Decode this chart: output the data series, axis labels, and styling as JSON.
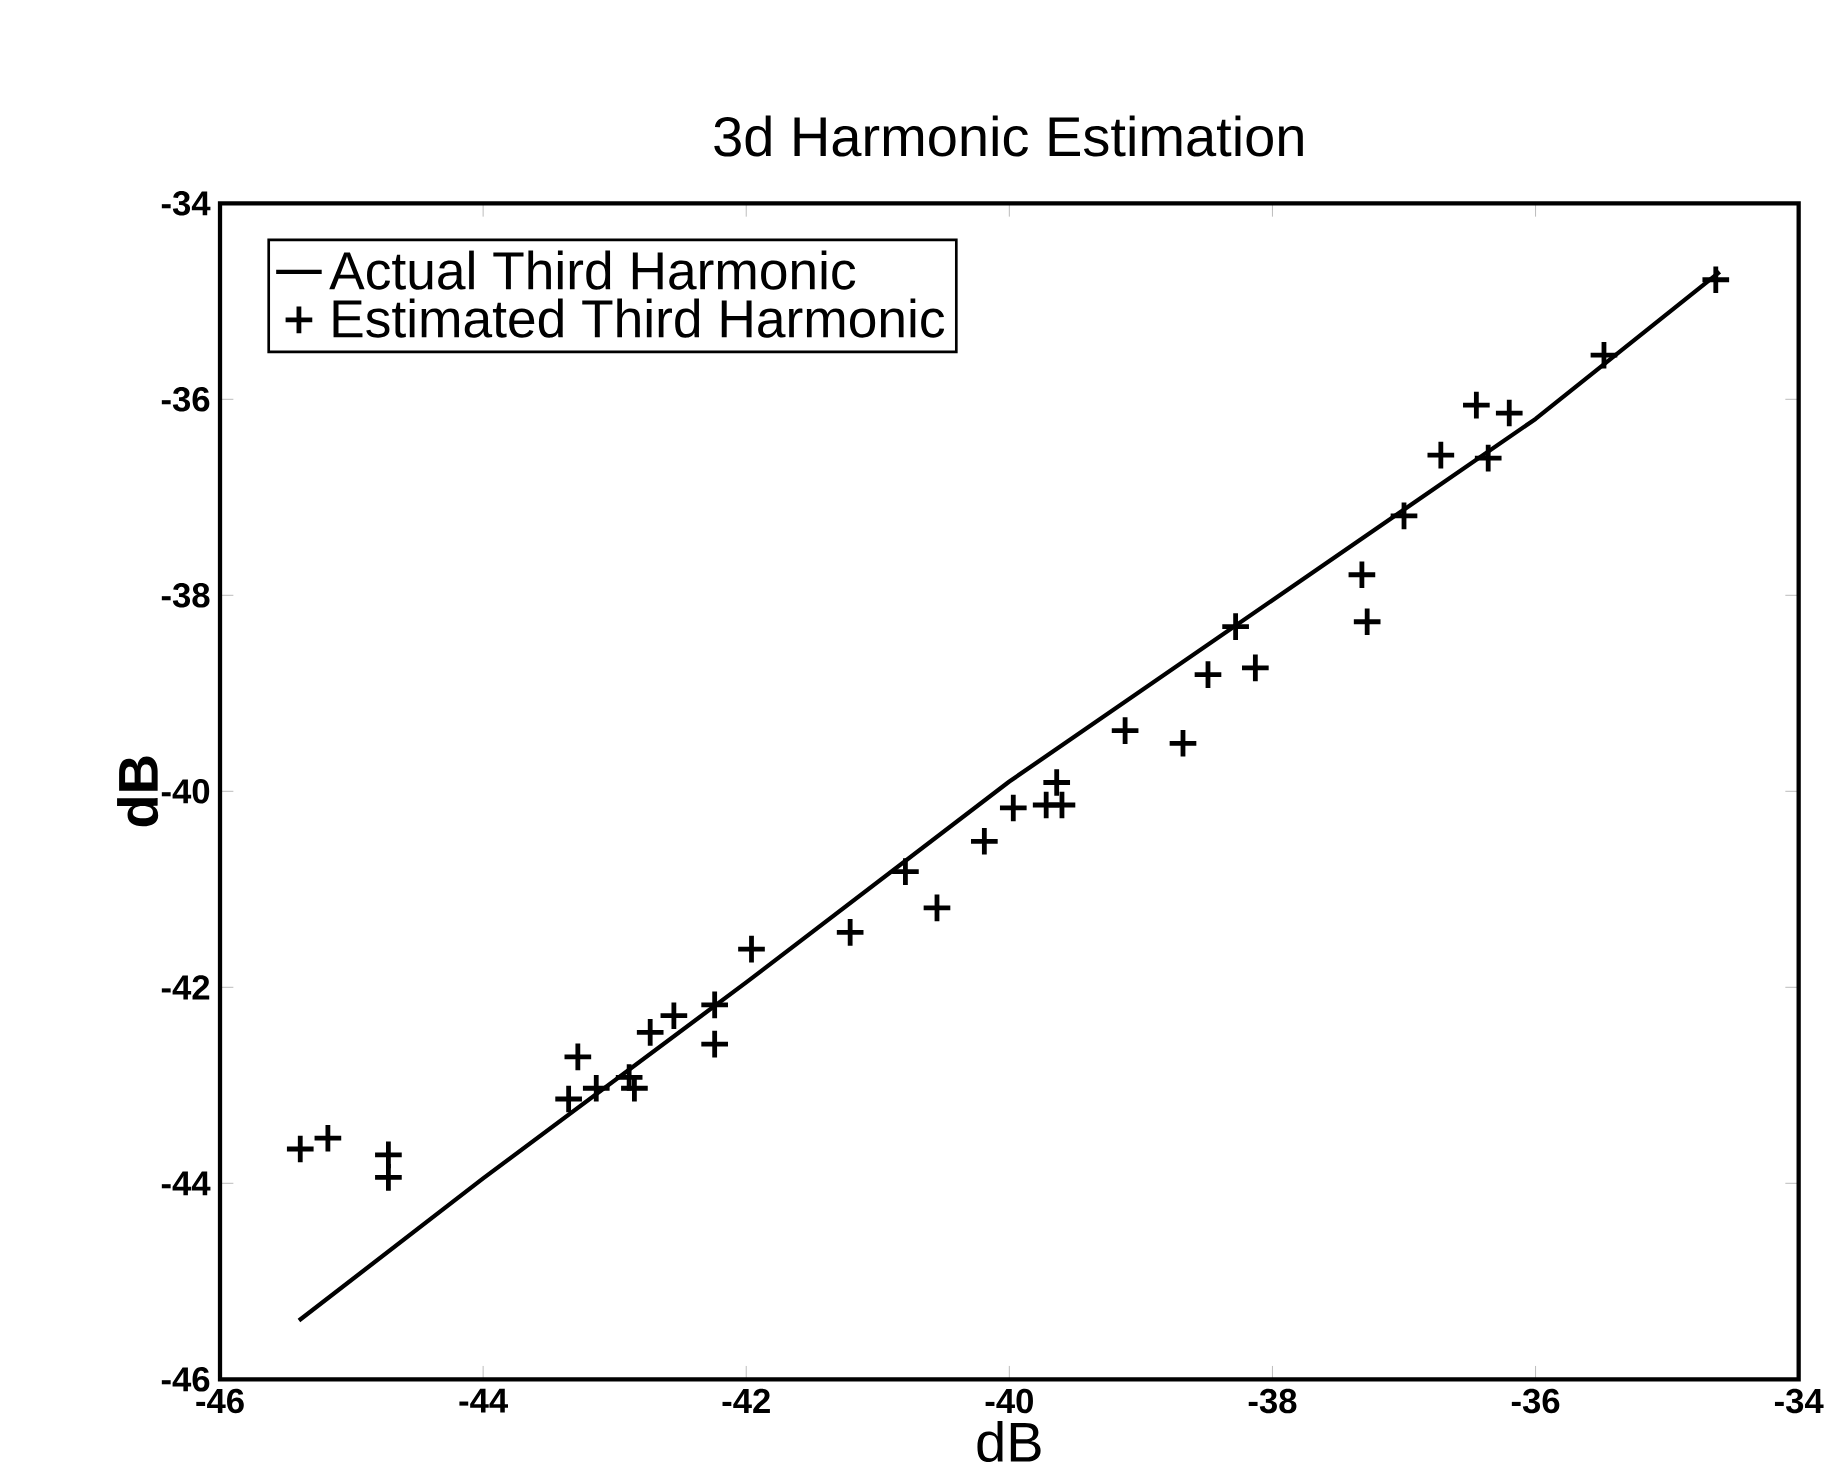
{
  "chart_data": {
    "type": "scatter",
    "title": "3d Harmonic Estimation",
    "xlabel": "dB",
    "ylabel": "dB",
    "xlim": [
      -46,
      -34
    ],
    "ylim": [
      -46,
      -34
    ],
    "xticks": [
      -46,
      -44,
      -42,
      -40,
      -38,
      -36,
      -34
    ],
    "yticks": [
      -46,
      -44,
      -42,
      -40,
      -38,
      -36,
      -34
    ],
    "grid": false,
    "legend": "top left",
    "series": [
      {
        "name": "Actual Third Harmonic",
        "type": "line",
        "color": "#000000",
        "line_style": "solid",
        "marker": "none",
        "x": [
          -45.4,
          -44,
          -42,
          -40,
          -38,
          -36,
          -34.6
        ],
        "values": [
          -45.4,
          -43.95,
          -41.95,
          -39.9,
          -38.05,
          -36.2,
          -34.7
        ]
      },
      {
        "name": "Estimated Third Harmonic",
        "color": "#000000",
        "marker": "cross",
        "x": [
          -45.39,
          -45.18,
          -44.72,
          -44.72,
          -43.28,
          -43.35,
          -43.14,
          -42.89,
          -42.85,
          -42.73,
          -42.55,
          -42.24,
          -42.24,
          -41.96,
          -41.21,
          -40.79,
          -40.55,
          -40.19,
          -39.97,
          -39.72,
          -39.64,
          -39.6,
          -39.12,
          -38.68,
          -38.49,
          -38.28,
          -38.13,
          -37.32,
          -37.28,
          -37.0,
          -36.72,
          -36.45,
          -36.36,
          -36.2,
          -35.48,
          -34.63
        ],
        "values": [
          -43.65,
          -43.54,
          -43.71,
          -43.94,
          -42.71,
          -43.14,
          -43.03,
          -42.92,
          -43.03,
          -42.46,
          -42.29,
          -42.18,
          -42.58,
          -41.61,
          -41.44,
          -40.82,
          -41.19,
          -40.51,
          -40.17,
          -40.14,
          -39.91,
          -40.14,
          -39.38,
          -39.51,
          -38.81,
          -38.32,
          -38.74,
          -37.79,
          -38.27,
          -37.19,
          -36.57,
          -36.06,
          -36.6,
          -36.14,
          -35.55,
          -34.78
        ]
      }
    ]
  }
}
